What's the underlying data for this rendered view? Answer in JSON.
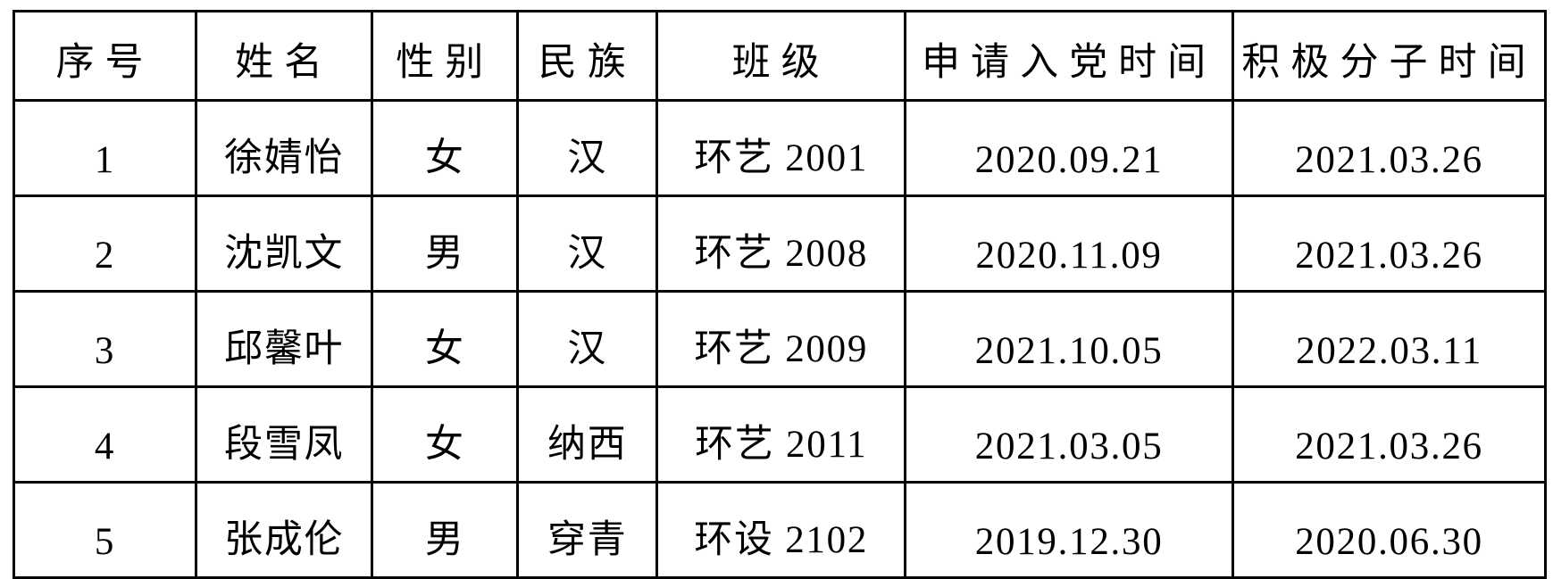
{
  "table": {
    "headers": [
      "序号",
      "姓名",
      "性别",
      "民族",
      "班级",
      "申请入党时间",
      "积极分子时间"
    ],
    "header_names": [
      "col-serial-number",
      "col-name",
      "col-gender",
      "col-ethnicity",
      "col-class",
      "col-party-application-date",
      "col-activist-date"
    ],
    "rows": [
      [
        "1",
        "徐婧怡",
        "女",
        "汉",
        "环艺 2001",
        "2020.09.21",
        "2021.03.26"
      ],
      [
        "2",
        "沈凯文",
        "男",
        "汉",
        "环艺 2008",
        "2020.11.09",
        "2021.03.26"
      ],
      [
        "3",
        "邱馨叶",
        "女",
        "汉",
        "环艺 2009",
        "2021.10.05",
        "2022.03.11"
      ],
      [
        "4",
        "段雪凤",
        "女",
        "纳西",
        "环艺 2011",
        "2021.03.05",
        "2021.03.26"
      ],
      [
        "5",
        "张成伦",
        "男",
        "穿青",
        "环设 2102",
        "2019.12.30",
        "2020.06.30"
      ]
    ],
    "colors": {
      "border": "#000000",
      "text": "#000000",
      "background": "#ffffff"
    }
  }
}
